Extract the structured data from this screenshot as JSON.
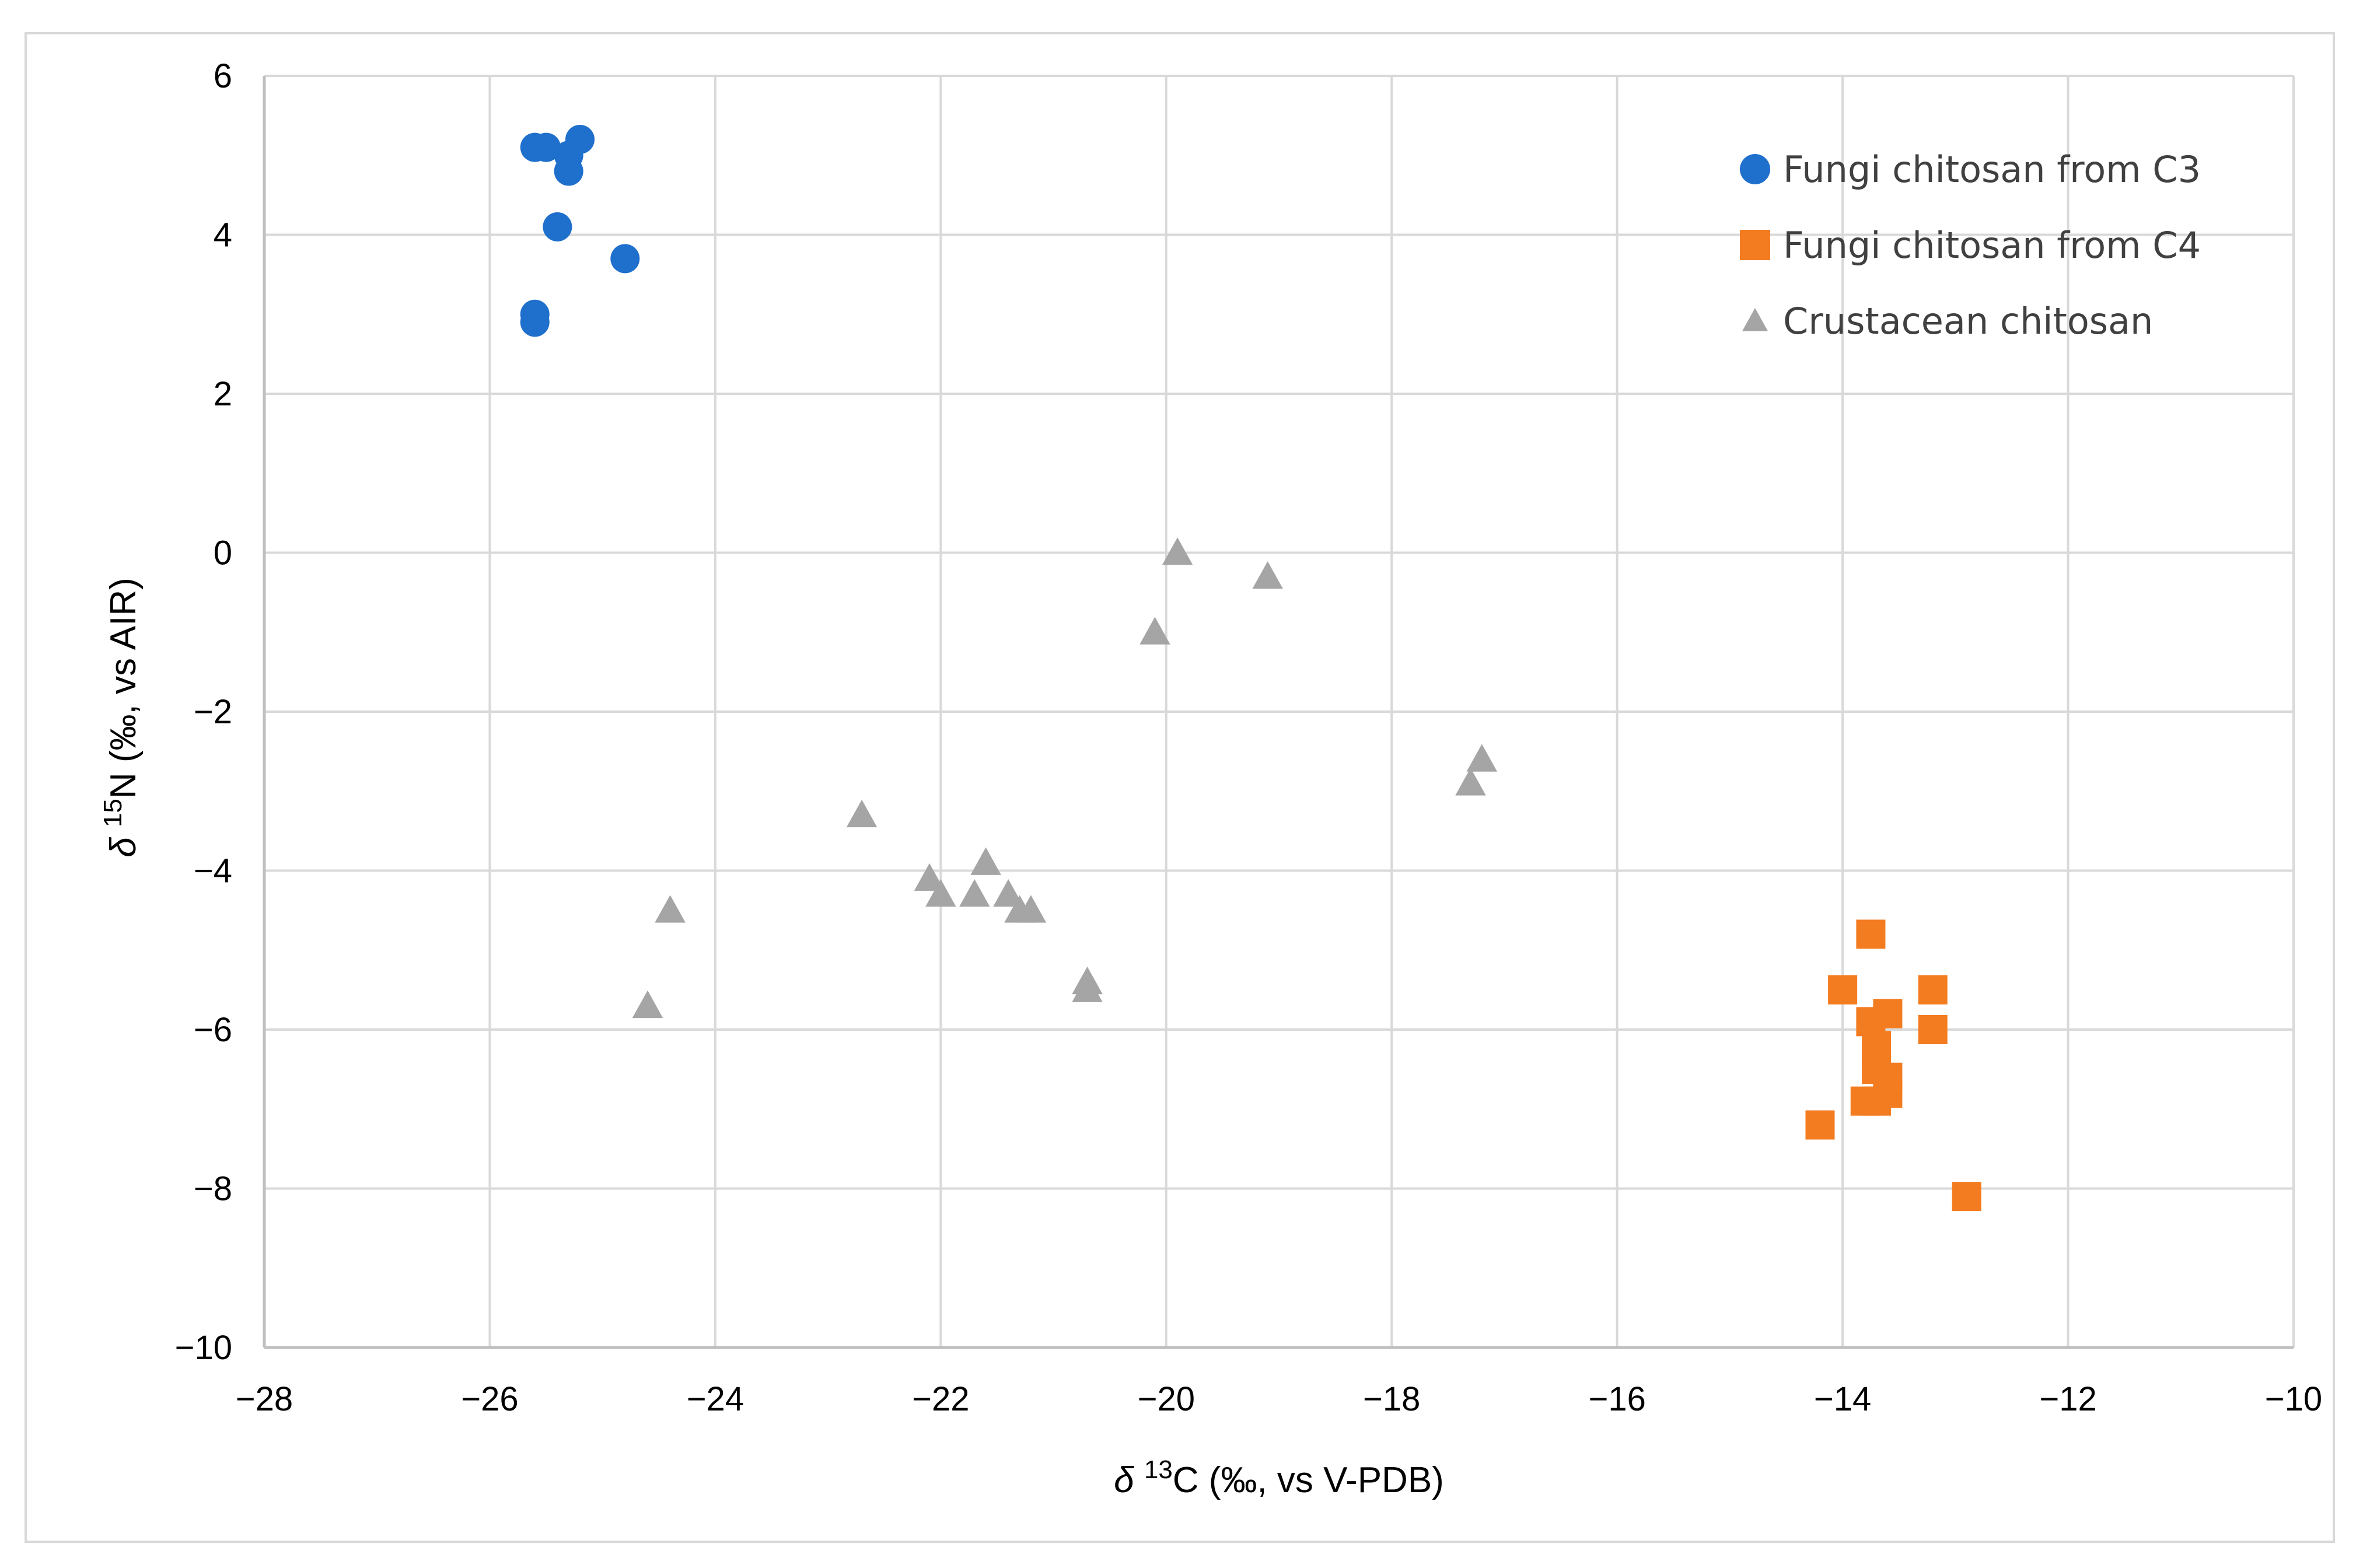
{
  "chart_data": {
    "type": "scatter",
    "title": "",
    "xlabel": "δ13C (‰, vs V-PDB)",
    "ylabel": "δ15N (‰, vs AIR)",
    "xlim": [
      -28,
      -10
    ],
    "ylim": [
      -10,
      6
    ],
    "xticks": [
      -28,
      -26,
      -24,
      -22,
      -20,
      -18,
      -16,
      -14,
      -12,
      -10
    ],
    "yticks": [
      -10,
      -8,
      -6,
      -4,
      -2,
      0,
      2,
      4,
      6
    ],
    "xtick_labels": [
      "−28",
      "−26",
      "−24",
      "−22",
      "−20",
      "−18",
      "−16",
      "−14",
      "−12",
      "−10"
    ],
    "ytick_labels": [
      "−10",
      "−8",
      "−6",
      "−4",
      "−2",
      "0",
      "2",
      "4",
      "6"
    ],
    "grid": true,
    "legend_position": "top-right",
    "series": [
      {
        "name": "Fungi chitosan from C3",
        "color": "#1f6fcc",
        "marker": "circle",
        "points": [
          [
            -25.6,
            5.1
          ],
          [
            -25.5,
            5.1
          ],
          [
            -25.2,
            5.2
          ],
          [
            -25.3,
            5.0
          ],
          [
            -25.3,
            4.8
          ],
          [
            -25.4,
            4.1
          ],
          [
            -24.8,
            3.7
          ],
          [
            -25.6,
            3.0
          ],
          [
            -25.6,
            2.9
          ]
        ]
      },
      {
        "name": "Fungi chitosan from C4",
        "color": "#f47c20",
        "marker": "square",
        "points": [
          [
            -13.75,
            -4.8
          ],
          [
            -14.0,
            -5.5
          ],
          [
            -13.2,
            -5.5
          ],
          [
            -13.6,
            -5.8
          ],
          [
            -13.75,
            -5.9
          ],
          [
            -13.2,
            -6.0
          ],
          [
            -13.7,
            -6.2
          ],
          [
            -13.7,
            -6.5
          ],
          [
            -13.6,
            -6.6
          ],
          [
            -13.6,
            -6.8
          ],
          [
            -13.7,
            -6.9
          ],
          [
            -13.8,
            -6.9
          ],
          [
            -14.2,
            -7.2
          ],
          [
            -12.9,
            -8.1
          ]
        ]
      },
      {
        "name": "Crustacean chitosan",
        "color": "#a5a5a5",
        "marker": "triangle",
        "points": [
          [
            -19.9,
            0.0
          ],
          [
            -19.1,
            -0.3
          ],
          [
            -20.1,
            -1.0
          ],
          [
            -17.2,
            -2.6
          ],
          [
            -17.3,
            -2.9
          ],
          [
            -22.7,
            -3.3
          ],
          [
            -21.6,
            -3.9
          ],
          [
            -22.1,
            -4.1
          ],
          [
            -22.0,
            -4.3
          ],
          [
            -21.7,
            -4.3
          ],
          [
            -21.4,
            -4.3
          ],
          [
            -21.3,
            -4.5
          ],
          [
            -21.2,
            -4.5
          ],
          [
            -24.4,
            -4.5
          ],
          [
            -20.7,
            -5.4
          ],
          [
            -20.7,
            -5.5
          ],
          [
            -24.6,
            -5.7
          ]
        ]
      }
    ]
  }
}
